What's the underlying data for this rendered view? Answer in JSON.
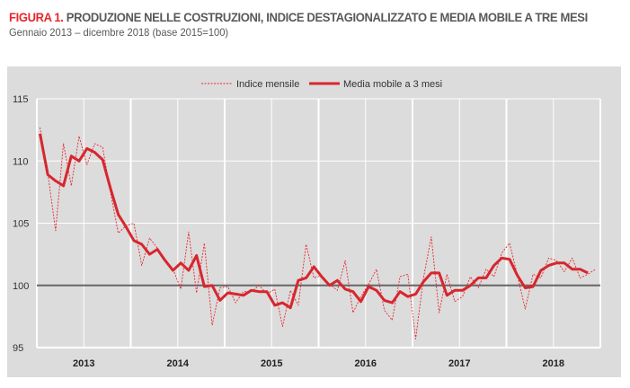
{
  "header": {
    "figure_label": "FIGURA 1.",
    "title": "PRODUZIONE NELLE COSTRUZIONI, INDICE DESTAGIONALIZZATO E MEDIA MOBILE  A TRE MESI",
    "subtitle": "Gennaio 2013 – dicembre 2018 (base 2015=100)"
  },
  "chart_data": {
    "type": "line",
    "title": "PRODUZIONE NELLE COSTRUZIONI, INDICE DESTAGIONALIZZATO E MEDIA MOBILE  A TRE MESI",
    "subtitle": "Gennaio 2013 – dicembre 2018 (base 2015=100)",
    "x_start": "2013-01",
    "x_end": "2018-12",
    "x_frequency": "monthly",
    "x_tick_labels": [
      "2013",
      "2014",
      "2015",
      "2016",
      "2017",
      "2018"
    ],
    "y_ticks": [
      95,
      100,
      105,
      110,
      115
    ],
    "ylim": [
      95,
      115
    ],
    "reference_line": 100,
    "grid": true,
    "legend": "top-center",
    "background": "#dcdcdc",
    "series": [
      {
        "name": "Indice mensile",
        "style": "dashed",
        "color": "#e8262e",
        "values": [
          112.7,
          109.0,
          104.4,
          111.4,
          108.0,
          112.0,
          109.7,
          111.4,
          111.1,
          107.5,
          104.2,
          104.8,
          105.0,
          101.6,
          103.8,
          103.0,
          102.0,
          101.3,
          99.7,
          104.3,
          99.4,
          103.4,
          96.8,
          99.8,
          99.9,
          98.6,
          99.5,
          99.5,
          100.0,
          99.3,
          99.7,
          96.7,
          99.6,
          98.4,
          103.3,
          100.6,
          100.8,
          100.1,
          99.6,
          102.0,
          97.8,
          99.1,
          100.1,
          101.3,
          98.0,
          97.2,
          100.7,
          100.9,
          95.7,
          100.6,
          103.9,
          97.8,
          100.9,
          98.7,
          99.1,
          100.7,
          99.8,
          101.3,
          100.7,
          102.6,
          103.4,
          100.8,
          98.1,
          100.9,
          100.6,
          102.2,
          102.0,
          101.1,
          102.2,
          100.6,
          100.9,
          101.3
        ]
      },
      {
        "name": "Media mobile a 3 mesi",
        "style": "solid",
        "color": "#d7262e",
        "values": [
          112.2,
          108.9,
          108.4,
          108.0,
          110.4,
          110.0,
          111.0,
          110.7,
          110.1,
          107.8,
          105.7,
          104.7,
          103.6,
          103.3,
          102.5,
          102.9,
          102.0,
          101.2,
          101.8,
          101.2,
          102.4,
          99.9,
          100.0,
          98.8,
          99.4,
          99.3,
          99.2,
          99.6,
          99.5,
          99.5,
          98.4,
          98.6,
          98.2,
          100.4,
          100.6,
          101.5,
          100.7,
          100.0,
          100.4,
          99.7,
          99.5,
          98.7,
          99.9,
          99.6,
          98.8,
          98.6,
          99.5,
          99.1,
          99.3,
          100.3,
          101.0,
          101.0,
          99.2,
          99.6,
          99.6,
          100.0,
          100.6,
          100.6,
          101.6,
          102.2,
          102.1,
          100.8,
          99.8,
          99.9,
          101.2,
          101.6,
          101.8,
          101.8,
          101.3,
          101.3,
          101.0,
          null
        ]
      }
    ]
  }
}
